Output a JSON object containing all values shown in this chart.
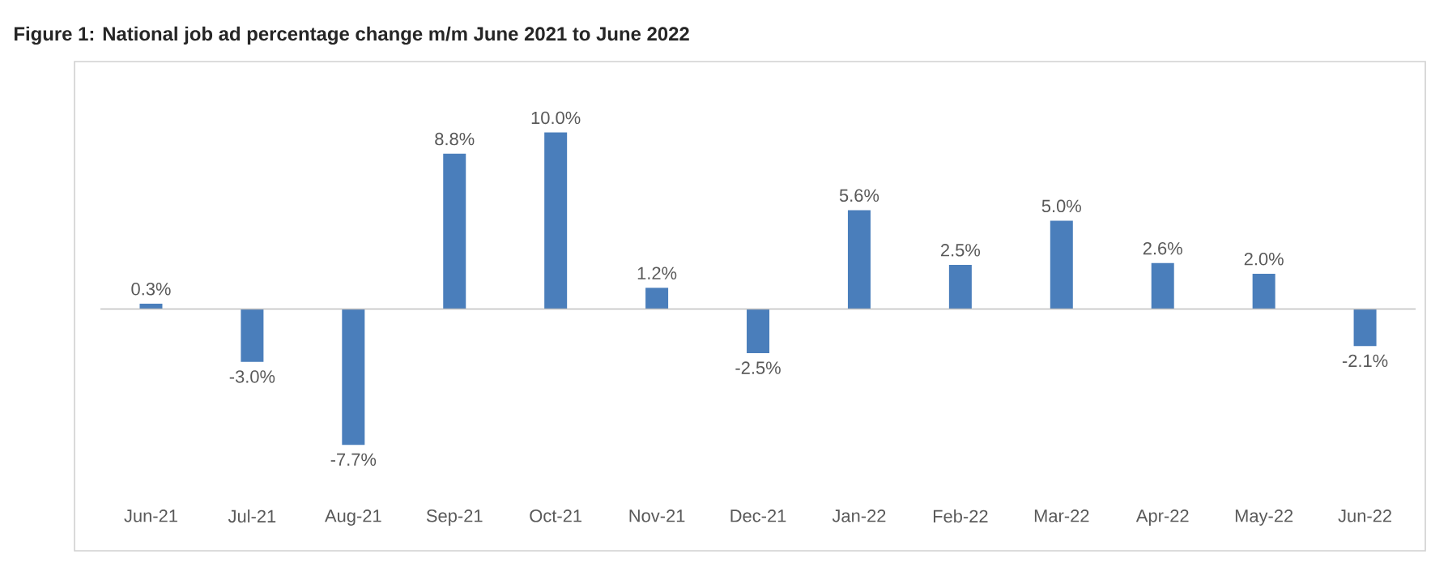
{
  "chart_data": {
    "type": "bar",
    "title": "Figure 1: National job ad percentage change m/m June 2021 to June 2022",
    "categories": [
      "Jun-21",
      "Jul-21",
      "Aug-21",
      "Sep-21",
      "Oct-21",
      "Nov-21",
      "Dec-21",
      "Jan-22",
      "Feb-22",
      "Mar-22",
      "Apr-22",
      "May-22",
      "Jun-22"
    ],
    "values": [
      0.3,
      -3.0,
      -7.7,
      8.8,
      10.0,
      1.2,
      -2.5,
      5.6,
      2.5,
      5.0,
      2.6,
      2.0,
      -2.1
    ],
    "value_labels": [
      "0.3%",
      "-3.0%",
      "-7.7%",
      "8.8%",
      "10.0%",
      "1.2%",
      "-2.5%",
      "5.6%",
      "2.5%",
      "5.0%",
      "2.6%",
      "2.0%",
      "-2.1%"
    ],
    "color": "#4a7ebb"
  }
}
